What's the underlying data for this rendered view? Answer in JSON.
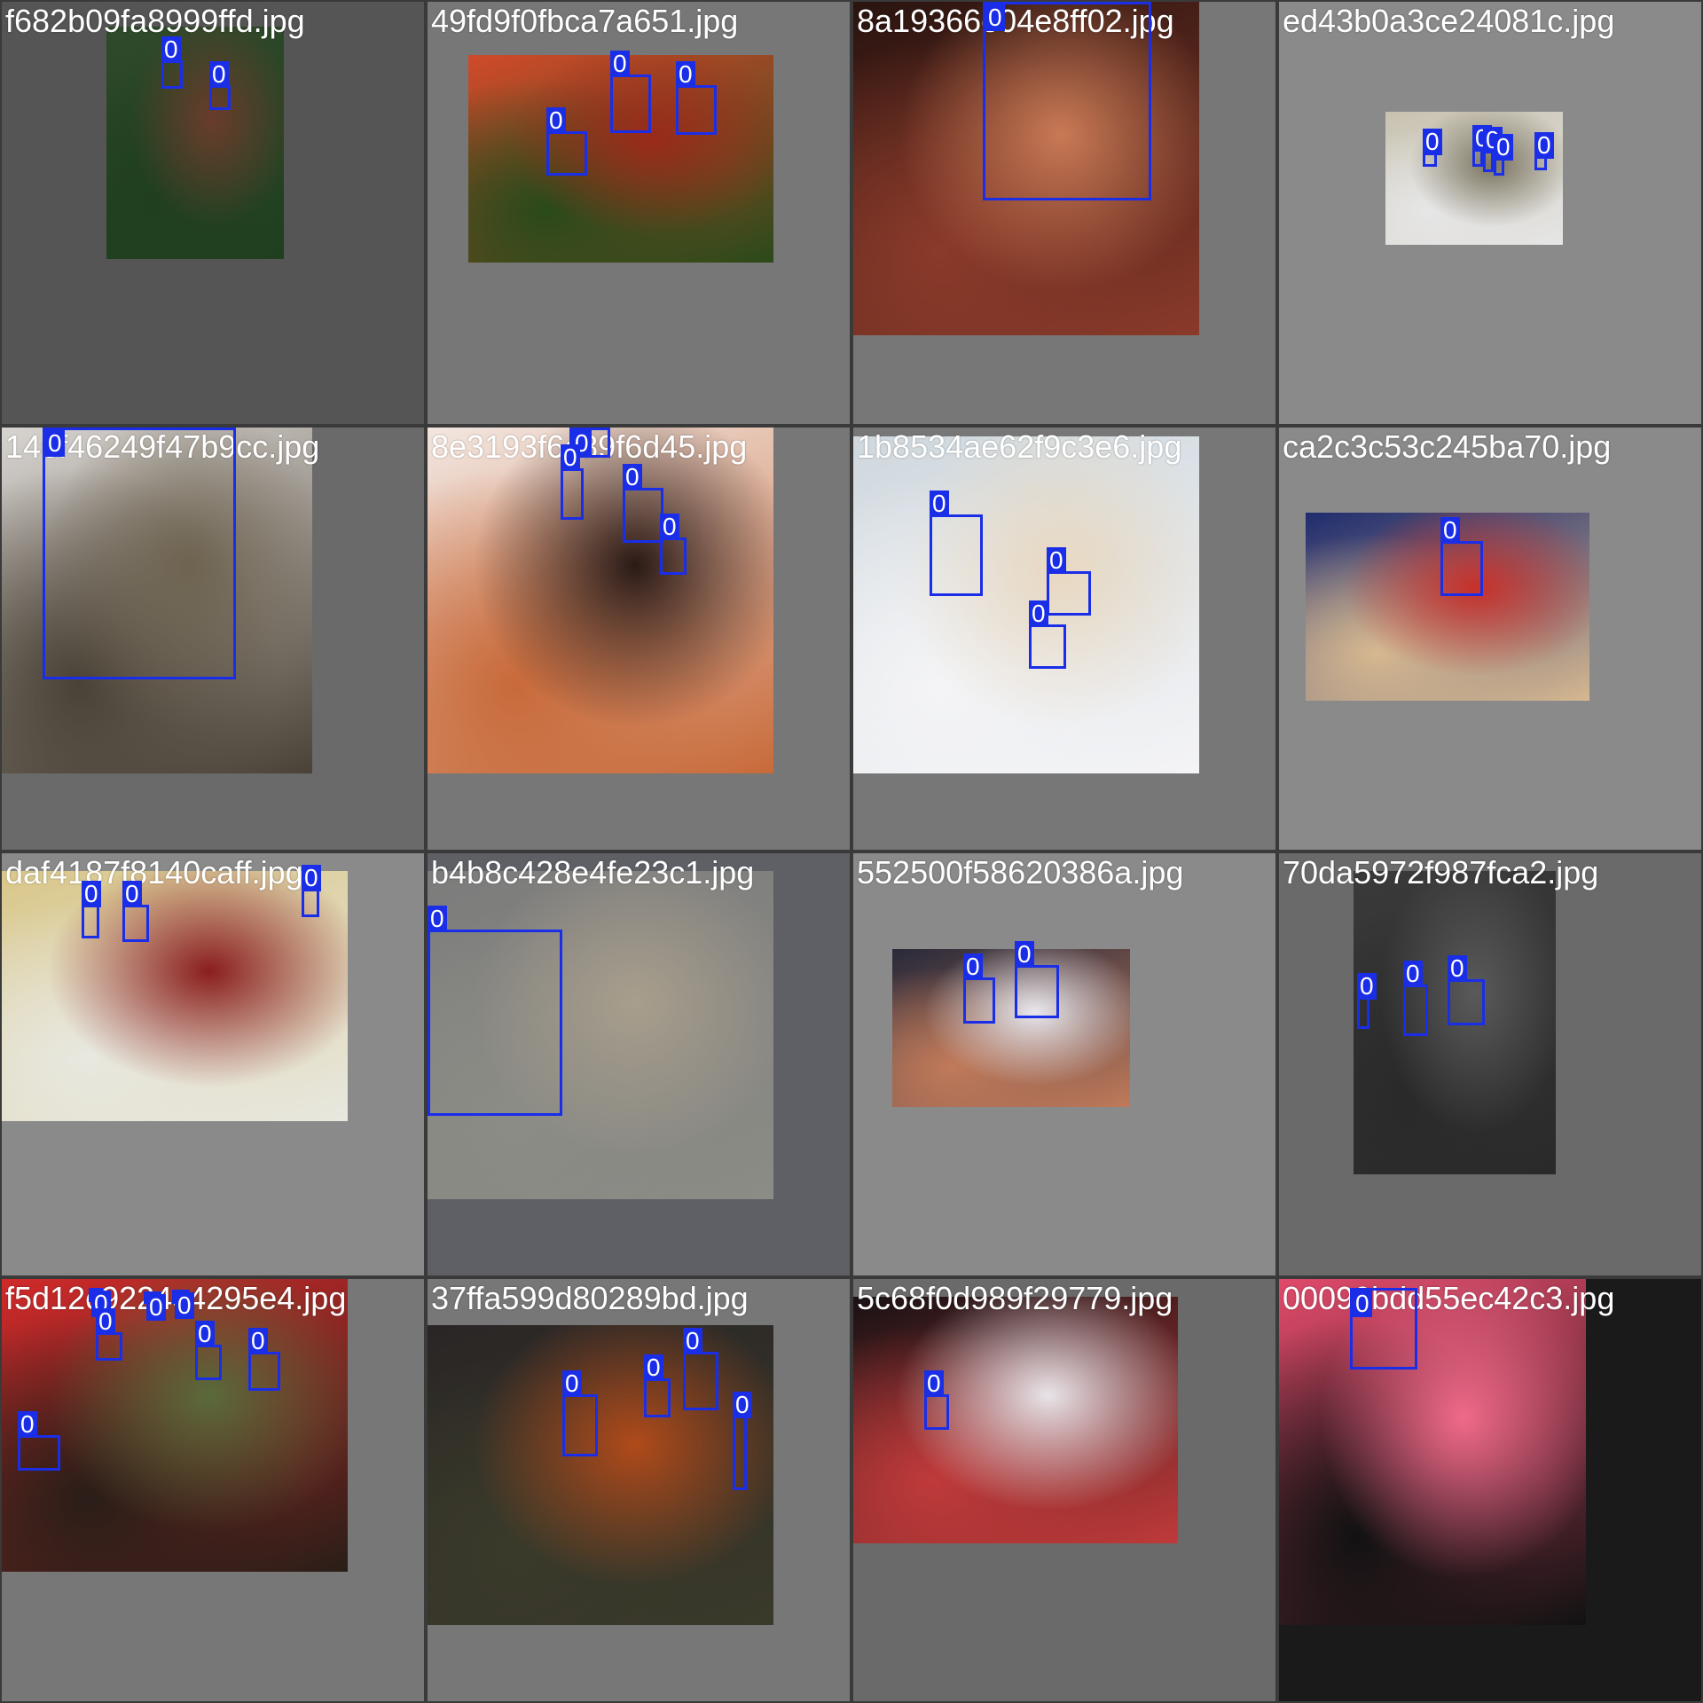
{
  "box_color": "#1a2ee8",
  "text_color": "#ffffff",
  "tiles": [
    {
      "filename": "f682b09fa8999ffd.jpg",
      "bg": "#555555",
      "photo_colors": [
        "#2f4a2a",
        "#6a3c2c",
        "#1f3f1f"
      ],
      "labels": [
        "0",
        "0"
      ]
    },
    {
      "filename": "49fd9f0fbca7a651.jpg",
      "bg": "#777777",
      "photo_colors": [
        "#d04a2a",
        "#9a2a1a",
        "#2a4a1a"
      ],
      "labels": [
        "0",
        "0",
        "0"
      ]
    },
    {
      "filename": "8a19366e04e8ff02.jpg",
      "bg": "#777777",
      "photo_colors": [
        "#2a1410",
        "#c97a55",
        "#8a3a2a"
      ],
      "labels": [
        "0"
      ]
    },
    {
      "filename": "ed43b0a3ce24081c.jpg",
      "bg": "#8a8a8a",
      "photo_colors": [
        "#c8c2b0",
        "#7a7460",
        "#e6e6e6"
      ],
      "labels": [
        "0",
        "0",
        "0",
        "0",
        "0",
        "0"
      ]
    },
    {
      "filename": "146f46249f47b9cc.jpg",
      "bg": "#6a6a6a",
      "photo_colors": [
        "#d8d4d0",
        "#6e6350",
        "#4a4236"
      ],
      "labels": [
        "0"
      ]
    },
    {
      "filename": "8e3193f6c89f6d45.jpg",
      "bg": "#777777",
      "photo_colors": [
        "#f2e6e0",
        "#2a1a16",
        "#c86a3a"
      ],
      "labels": [
        "0",
        "0",
        "0",
        "0"
      ]
    },
    {
      "filename": "1b8534ae62f9c3e6.jpg",
      "bg": "#777777",
      "photo_colors": [
        "#cfd8de",
        "#e8d8c0",
        "#f4f4f6"
      ],
      "labels": [
        "0",
        "0",
        "0"
      ]
    },
    {
      "filename": "ca2c3c53c245ba70.jpg",
      "bg": "#8a8a8a",
      "photo_colors": [
        "#1f2c6e",
        "#c8302a",
        "#d6b890"
      ],
      "labels": [
        "0"
      ]
    },
    {
      "filename": "daf4187f8140caff.jpg",
      "bg": "#8a8a8a",
      "photo_colors": [
        "#d9c78a",
        "#8a1e1e",
        "#e8e8e0"
      ],
      "labels": [
        "0",
        "0",
        "0"
      ]
    },
    {
      "filename": "b4b8c428e4fe23c1.jpg",
      "bg": "#5e6066",
      "photo_colors": [
        "#7c7c7c",
        "#a89e8c",
        "#8c8c86"
      ],
      "labels": [
        "0"
      ]
    },
    {
      "filename": "552500f58620386a.jpg",
      "bg": "#8a8a8a",
      "photo_colors": [
        "#2a2a3a",
        "#e8e8ee",
        "#c07a5a"
      ],
      "labels": [
        "0",
        "0"
      ]
    },
    {
      "filename": "70da5972f987fca2.jpg",
      "bg": "#6a6a6a",
      "photo_colors": [
        "#3a3a3a",
        "#5a5a5a",
        "#2a2a2a"
      ],
      "labels": [
        "0",
        "0",
        "0"
      ]
    },
    {
      "filename": "f5d12c9224c4295e4.jpg",
      "bg": "#777777",
      "photo_colors": [
        "#d02a2a",
        "#5a6a3a",
        "#2a1e18"
      ],
      "labels": [
        "0",
        "0",
        "0",
        "0",
        "0",
        "0",
        "0",
        "0"
      ]
    },
    {
      "filename": "37ffa599d80289bd.jpg",
      "bg": "#777777",
      "photo_colors": [
        "#2a2626",
        "#b04a1a",
        "#3a3a2a"
      ],
      "labels": [
        "0",
        "0",
        "0",
        "0",
        "0"
      ]
    },
    {
      "filename": "5c68f0d989f29779.jpg",
      "bg": "#6a6a6a",
      "photo_colors": [
        "#1a1214",
        "#e8e4e8",
        "#c03a3a"
      ],
      "labels": [
        "0"
      ]
    },
    {
      "filename": "00090bdd55ec42c3.jpg",
      "bg": "#1a1a1a",
      "photo_colors": [
        "#e04a6a",
        "#f06a8a",
        "#121212"
      ],
      "labels": [
        "0"
      ]
    }
  ]
}
